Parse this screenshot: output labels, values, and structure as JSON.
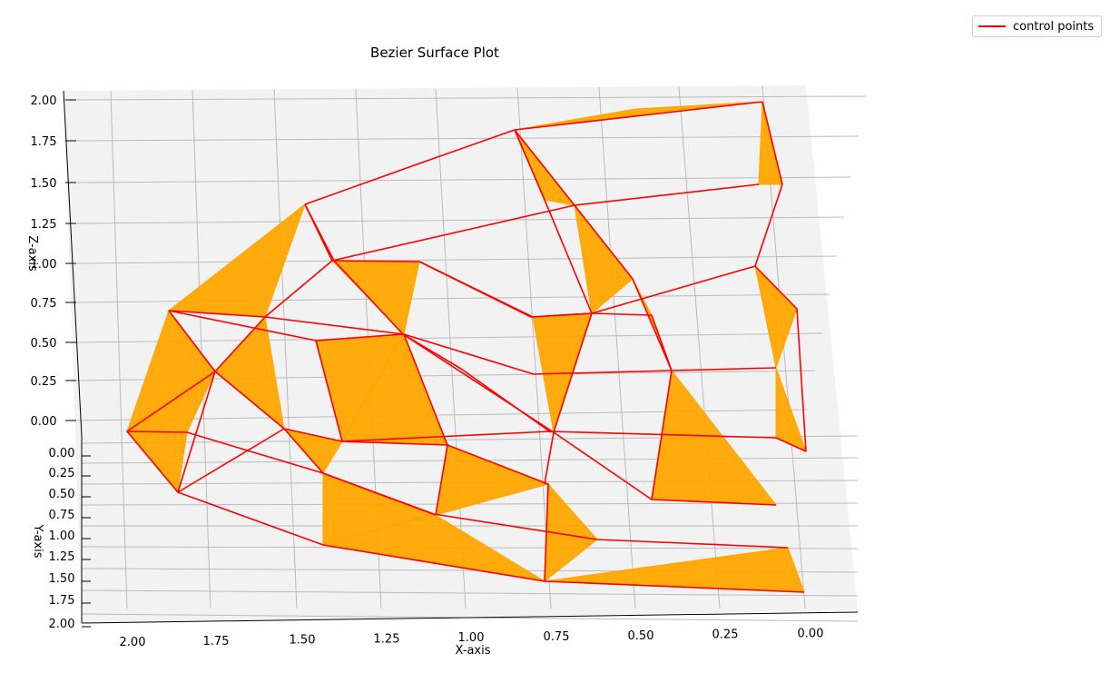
{
  "chart_data": {
    "type": "surface-3d",
    "title": "Bezier Surface Plot",
    "xlabel": "X-axis",
    "ylabel": "Y-axis",
    "zlabel": "Z-axis",
    "xlim": [
      0,
      2
    ],
    "ylim": [
      0,
      2
    ],
    "zlim": [
      0,
      2
    ],
    "x_ticks": [
      "2.00",
      "1.75",
      "1.50",
      "1.25",
      "1.00",
      "0.75",
      "0.50",
      "0.25",
      "0.00"
    ],
    "y_ticks": [
      "0.00",
      "0.25",
      "0.50",
      "0.75",
      "1.00",
      "1.25",
      "1.50",
      "1.75",
      "2.00"
    ],
    "z_ticks": [
      "0.00",
      "0.25",
      "0.50",
      "0.75",
      "1.00",
      "1.25",
      "1.50",
      "1.75",
      "2.00"
    ],
    "grid": true,
    "legend_position": "top-right",
    "series": [
      {
        "name": "control points",
        "color": "#ff0000"
      }
    ],
    "surface_color": "#ffa500"
  }
}
